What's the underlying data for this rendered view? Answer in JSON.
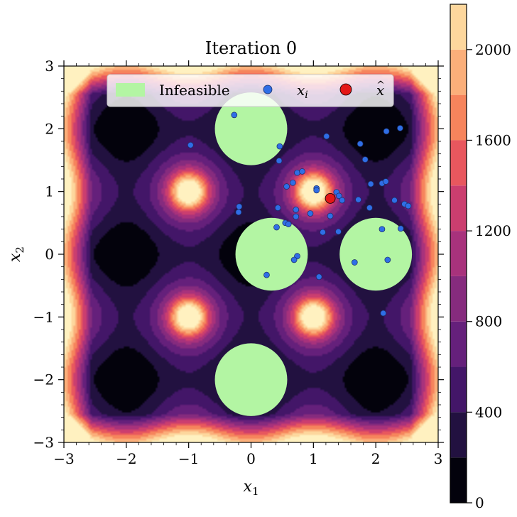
{
  "chart_data": {
    "type": "contour",
    "title": "Iteration 0",
    "xlabel": "x",
    "xlabel_sub": "1",
    "ylabel": "x",
    "ylabel_sub": "2",
    "xlim": [
      -3,
      3
    ],
    "ylim": [
      -3,
      3
    ],
    "xticks": [
      -3,
      -2,
      -1,
      0,
      1,
      2,
      3
    ],
    "yticks": [
      -3,
      -2,
      -1,
      0,
      1,
      2,
      3
    ],
    "xtick_labels": [
      "−3",
      "−2",
      "−1",
      "0",
      "1",
      "2",
      "3"
    ],
    "ytick_labels": [
      "−3",
      "−2",
      "−1",
      "0",
      "1",
      "2",
      "3"
    ],
    "colorbar": {
      "min": 0,
      "max": 2200,
      "levels": [
        0,
        200,
        400,
        600,
        800,
        1000,
        1200,
        1400,
        1600,
        1800,
        2000,
        2200
      ],
      "colors": [
        "#03020c",
        "#221140",
        "#431668",
        "#65207b",
        "#862b7e",
        "#a8327c",
        "#cb3e6f",
        "#e8575e",
        "#f6845c",
        "#fbaf7a",
        "#fdd79d",
        "#fff1c0"
      ],
      "tick_values": [
        0,
        400,
        800,
        1200,
        1600,
        2000
      ],
      "tick_labels": [
        "0",
        "400",
        "800",
        "1200",
        "1600",
        "2000"
      ]
    },
    "background_peaks": [
      {
        "x": -1,
        "y": 1,
        "value": 1750
      },
      {
        "x": 1,
        "y": 1,
        "value": 1750
      },
      {
        "x": -1,
        "y": -1,
        "value": 1750
      },
      {
        "x": 1,
        "y": -1,
        "value": 1750
      }
    ],
    "background_minima": [
      {
        "x": -2,
        "y": 2,
        "value": 0
      },
      {
        "x": 0,
        "y": 2,
        "value": 0
      },
      {
        "x": 2,
        "y": 2,
        "value": 0
      },
      {
        "x": -2,
        "y": 0,
        "value": 0
      },
      {
        "x": 0,
        "y": 0,
        "value": 0
      },
      {
        "x": 2,
        "y": 0,
        "value": 0
      },
      {
        "x": -2,
        "y": -2,
        "value": 0
      },
      {
        "x": 0,
        "y": -2,
        "value": 0
      },
      {
        "x": 2,
        "y": -2,
        "value": 0
      }
    ],
    "infeasible_regions": [
      {
        "cx": 0.0,
        "cy": 2.0,
        "r": 0.58
      },
      {
        "cx": 0.33,
        "cy": 0.0,
        "r": 0.58
      },
      {
        "cx": 2.0,
        "cy": 0.0,
        "r": 0.58
      },
      {
        "cx": 0.0,
        "cy": -2.0,
        "r": 0.58
      }
    ],
    "infeasible_color": "#b3f5a3",
    "samples": [
      [
        -0.27,
        2.22
      ],
      [
        -0.97,
        1.74
      ],
      [
        0.46,
        1.72
      ],
      [
        0.45,
        1.49
      ],
      [
        1.21,
        1.88
      ],
      [
        1.75,
        1.76
      ],
      [
        2.17,
        1.96
      ],
      [
        2.39,
        2.01
      ],
      [
        1.83,
        1.51
      ],
      [
        0.74,
        1.3
      ],
      [
        0.82,
        1.32
      ],
      [
        0.67,
        1.14
      ],
      [
        0.57,
        1.08
      ],
      [
        1.05,
        1.05
      ],
      [
        1.05,
        1.02
      ],
      [
        1.37,
        0.99
      ],
      [
        1.41,
        0.93
      ],
      [
        1.46,
        0.86
      ],
      [
        1.72,
        0.87
      ],
      [
        1.92,
        1.12
      ],
      [
        2.1,
        1.13
      ],
      [
        2.16,
        1.16
      ],
      [
        2.3,
        0.86
      ],
      [
        2.46,
        0.8
      ],
      [
        2.52,
        0.77
      ],
      [
        1.9,
        0.74
      ],
      [
        -0.19,
        0.76
      ],
      [
        -0.2,
        0.67
      ],
      [
        0.43,
        0.74
      ],
      [
        0.72,
        0.71
      ],
      [
        0.72,
        0.6
      ],
      [
        0.95,
        0.65
      ],
      [
        1.27,
        0.61
      ],
      [
        0.55,
        0.5
      ],
      [
        0.6,
        0.48
      ],
      [
        0.41,
        0.43
      ],
      [
        1.15,
        0.35
      ],
      [
        1.4,
        0.36
      ],
      [
        2.1,
        0.4
      ],
      [
        2.4,
        0.41
      ],
      [
        0.74,
        -0.03
      ],
      [
        0.69,
        -0.09
      ],
      [
        0.25,
        -0.33
      ],
      [
        1.09,
        -0.36
      ],
      [
        1.66,
        -0.13
      ],
      [
        2.19,
        -0.09
      ],
      [
        2.12,
        -0.94
      ]
    ],
    "best": [
      1.27,
      0.89
    ],
    "sample_color": "#2f6ee6",
    "best_color": "#e41717",
    "legend": {
      "position": "top-center",
      "entries": [
        {
          "label": "Infeasible",
          "kind": "patch"
        },
        {
          "label": "x",
          "sub": "i",
          "kind": "sample"
        },
        {
          "label": "x",
          "accent": "^",
          "kind": "best"
        }
      ]
    }
  }
}
